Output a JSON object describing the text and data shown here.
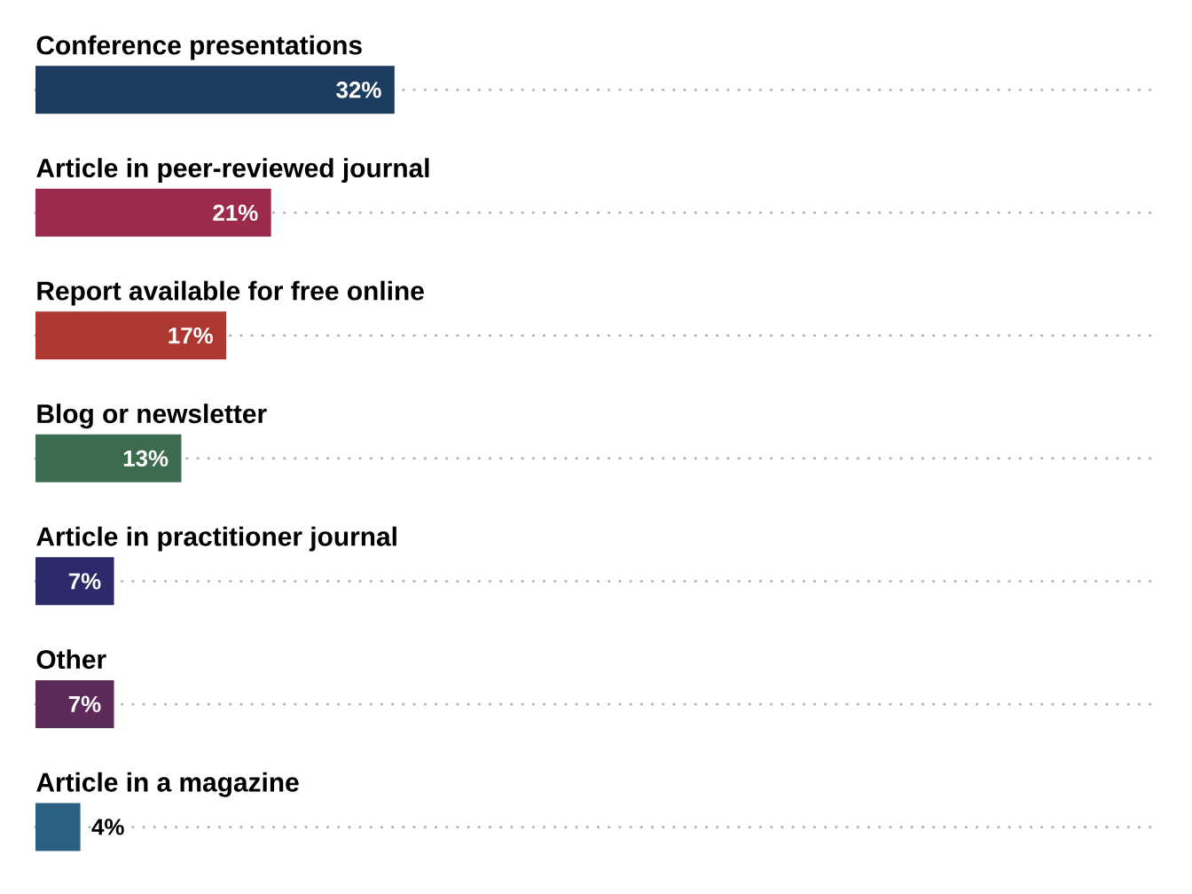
{
  "chart_data": {
    "type": "bar",
    "orientation": "horizontal",
    "categories": [
      "Conference presentations",
      "Article in peer-reviewed journal",
      "Report available for free online",
      "Blog or newsletter",
      "Article in practitioner journal",
      "Other",
      "Article in a magazine"
    ],
    "values": [
      32,
      21,
      17,
      13,
      7,
      7,
      4
    ],
    "value_labels": [
      "32%",
      "21%",
      "17%",
      "13%",
      "7%",
      "7%",
      "4%"
    ],
    "colors": [
      "#1d3d60",
      "#9b2a4d",
      "#ad3832",
      "#3c6b4f",
      "#2b2a6b",
      "#5e2a5a",
      "#2a6080"
    ],
    "xlim": [
      0,
      100
    ],
    "grid": "y"
  }
}
